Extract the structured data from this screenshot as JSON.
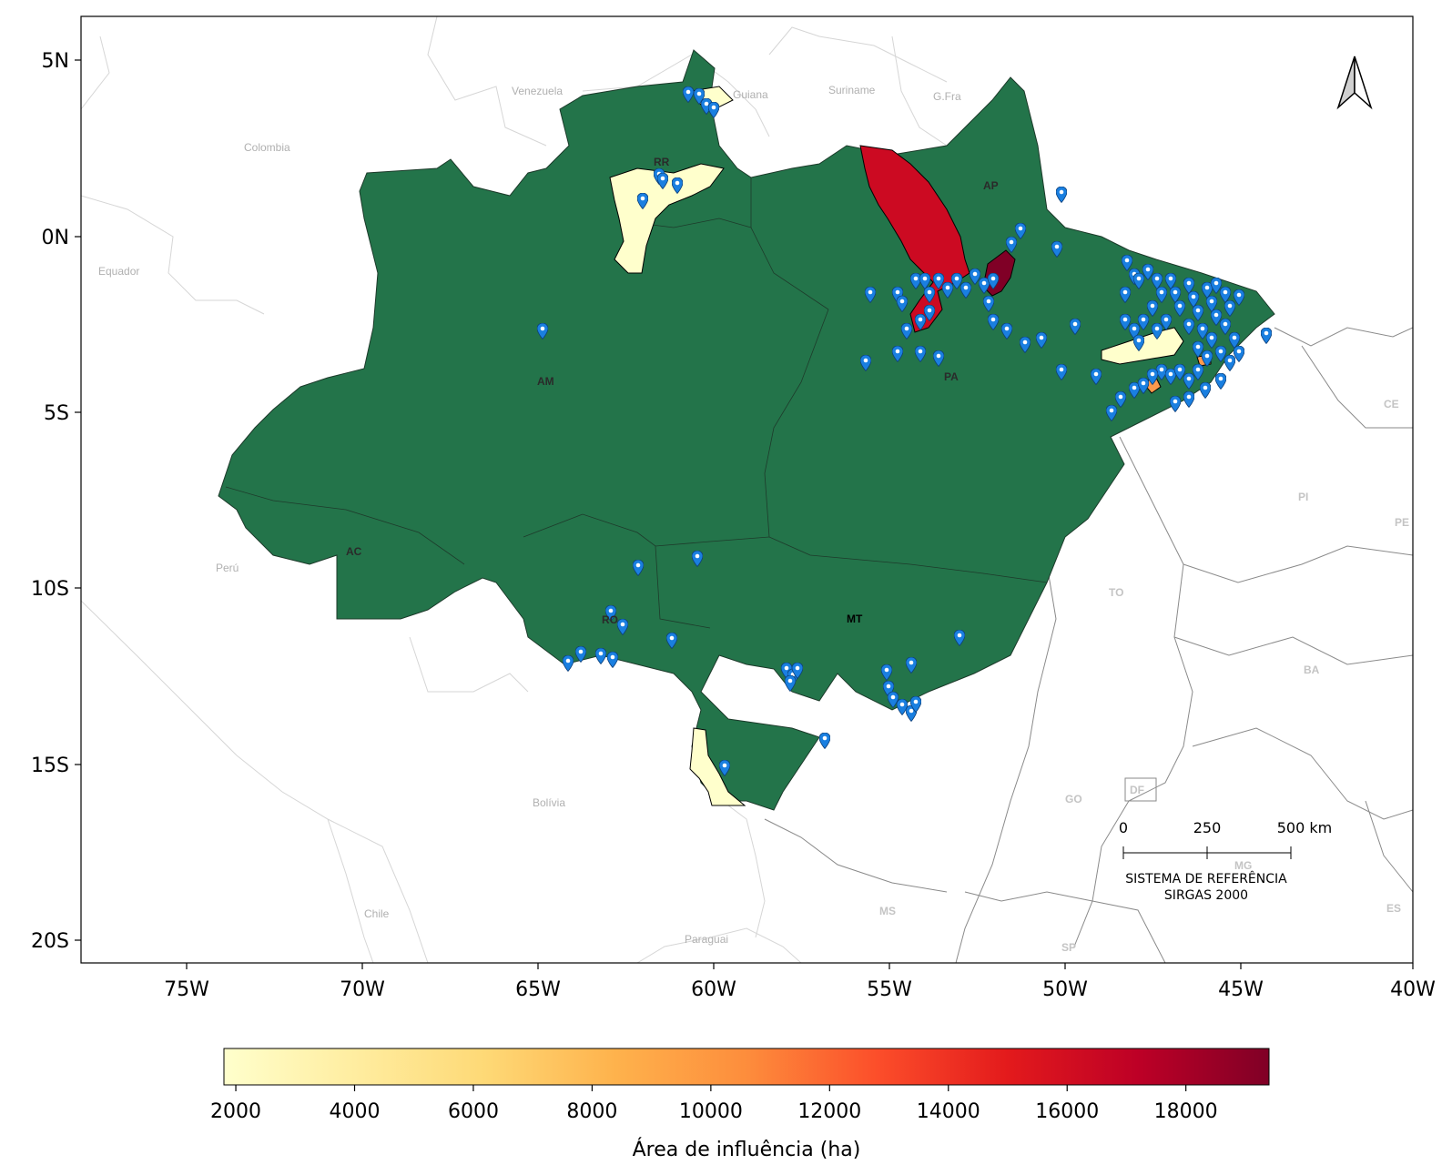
{
  "map": {
    "lat_ticks": [
      "5N",
      "0N",
      "5S",
      "10S",
      "15S",
      "20S"
    ],
    "lon_ticks": [
      "75W",
      "70W",
      "65W",
      "60W",
      "55W",
      "50W",
      "45W",
      "40W"
    ],
    "countries": [
      "Venezuela",
      "Guiana",
      "Suriname",
      "G.Fra",
      "Colombia",
      "Equador",
      "Perú",
      "Bolívia",
      "Chile",
      "Paraguai"
    ],
    "outside_states": [
      "CE",
      "PI",
      "PE",
      "TO",
      "BA",
      "GO",
      "DF",
      "MG",
      "MS",
      "SP",
      "ES"
    ],
    "legal_amazon_states": [
      "AP",
      "PA",
      "AM",
      "AC",
      "RR",
      "RO",
      "MT"
    ],
    "scale_bar": {
      "labels": [
        "0",
        "250",
        "500 km"
      ],
      "reference_line1": "SISTEMA DE REFERÊNCIA",
      "reference_line2": "SIRGAS 2000"
    },
    "north_arrow": "north-arrow-icon",
    "region_color": "#23744a",
    "marker_color": "#1a7fe0",
    "colorbar": {
      "label": "Área de influência (ha)",
      "min": 1800,
      "max": 19400,
      "ticks": [
        "2000",
        "4000",
        "6000",
        "8000",
        "10000",
        "12000",
        "14000",
        "16000",
        "18000"
      ],
      "colors": [
        "#ffffcc",
        "#ffeda0",
        "#fed976",
        "#feb24c",
        "#fd8d3c",
        "#fc4e2a",
        "#e31a1c",
        "#bd0026",
        "#800026"
      ]
    }
  }
}
